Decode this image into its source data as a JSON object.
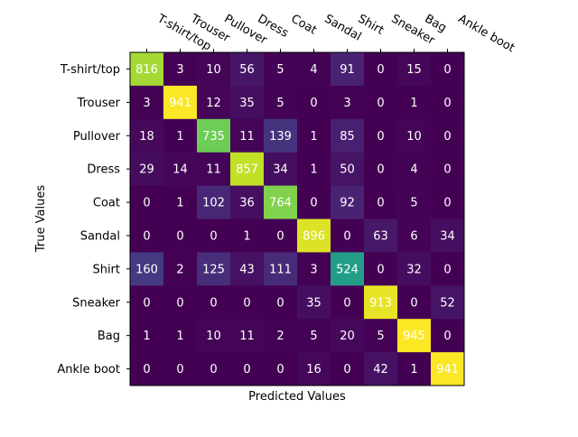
{
  "chart_data": {
    "type": "heatmap",
    "title": "",
    "xlabel": "Predicted Values",
    "ylabel": "True Values",
    "x_categories": [
      "T-shirt/top",
      "Trouser",
      "Pullover",
      "Dress",
      "Coat",
      "Sandal",
      "Shirt",
      "Sneaker",
      "Bag",
      "Ankle boot"
    ],
    "y_categories": [
      "T-shirt/top",
      "Trouser",
      "Pullover",
      "Dress",
      "Coat",
      "Sandal",
      "Shirt",
      "Sneaker",
      "Bag",
      "Ankle boot"
    ],
    "x_tick_position": "top",
    "colormap": "viridis",
    "value_range": [
      0,
      945
    ],
    "values": [
      [
        816,
        3,
        10,
        56,
        5,
        4,
        91,
        0,
        15,
        0
      ],
      [
        3,
        941,
        12,
        35,
        5,
        0,
        3,
        0,
        1,
        0
      ],
      [
        18,
        1,
        735,
        11,
        139,
        1,
        85,
        0,
        10,
        0
      ],
      [
        29,
        14,
        11,
        857,
        34,
        1,
        50,
        0,
        4,
        0
      ],
      [
        0,
        1,
        102,
        36,
        764,
        0,
        92,
        0,
        5,
        0
      ],
      [
        0,
        0,
        0,
        1,
        0,
        896,
        0,
        63,
        6,
        34
      ],
      [
        160,
        2,
        125,
        43,
        111,
        3,
        524,
        0,
        32,
        0
      ],
      [
        0,
        0,
        0,
        0,
        0,
        35,
        0,
        913,
        0,
        52
      ],
      [
        1,
        1,
        10,
        11,
        2,
        5,
        20,
        5,
        945,
        0
      ],
      [
        0,
        0,
        0,
        0,
        0,
        16,
        0,
        42,
        1,
        941
      ]
    ]
  }
}
